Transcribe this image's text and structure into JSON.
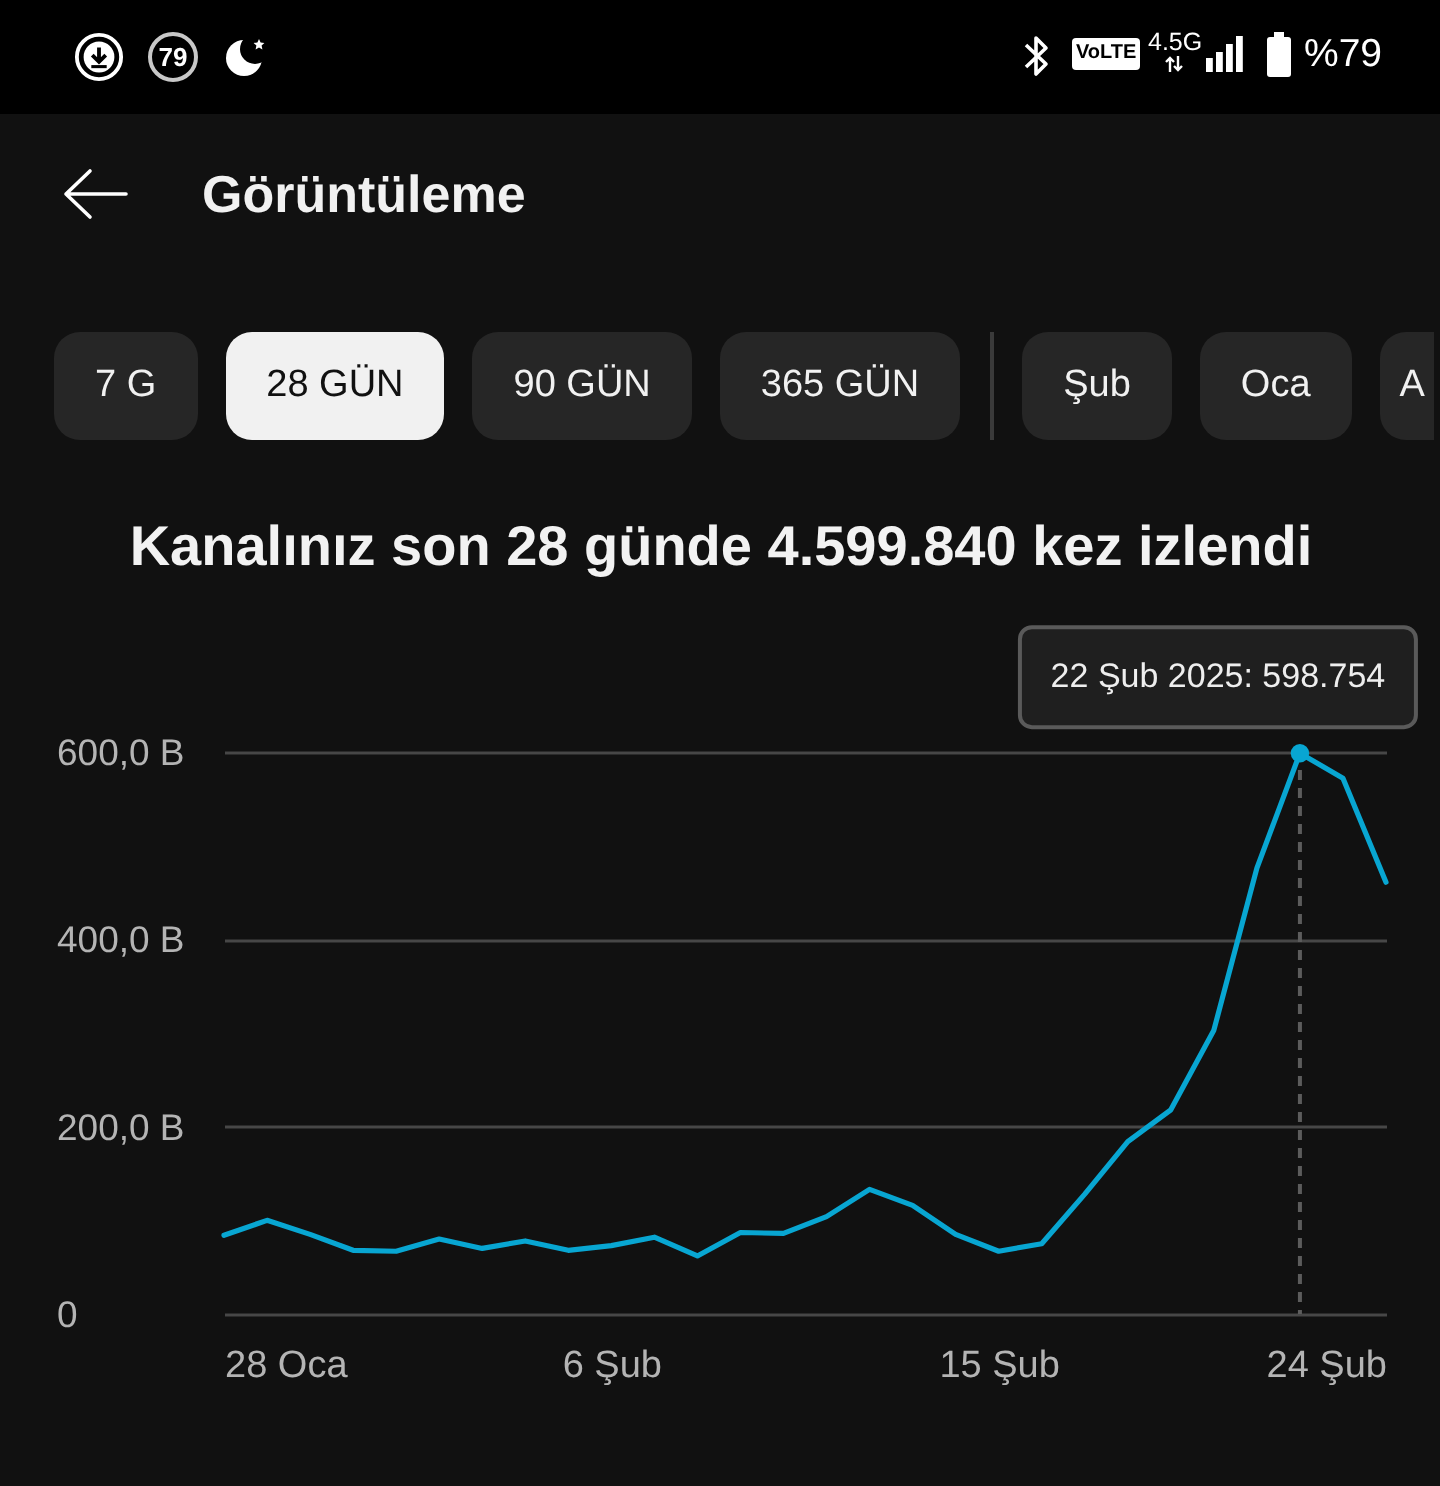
{
  "chart_data": {
    "type": "line",
    "title": "Görüntüleme",
    "subtitle": "Kanalınız son 28 günde 4.599.840 kez izlendi",
    "x": [
      "2025-01-28",
      "2025-01-29",
      "2025-01-30",
      "2025-01-31",
      "2025-02-01",
      "2025-02-02",
      "2025-02-03",
      "2025-02-04",
      "2025-02-05",
      "2025-02-06",
      "2025-02-07",
      "2025-02-08",
      "2025-02-09",
      "2025-02-10",
      "2025-02-11",
      "2025-02-12",
      "2025-02-13",
      "2025-02-14",
      "2025-02-15",
      "2025-02-16",
      "2025-02-17",
      "2025-02-18",
      "2025-02-19",
      "2025-02-20",
      "2025-02-21",
      "2025-02-22",
      "2025-02-23",
      "2025-02-24"
    ],
    "values": [
      84,
      100,
      85,
      68,
      67,
      80,
      70,
      78,
      68,
      73,
      82,
      62,
      87,
      86,
      104,
      133,
      116,
      85,
      67,
      75,
      128,
      184,
      218,
      303,
      476,
      598.754,
      572,
      461
    ],
    "color": "#08a6d2",
    "xlim": [
      "2025-01-28",
      "2025-02-24"
    ],
    "xticks": [
      {
        "value": "2025-01-28",
        "label": "28 Oca"
      },
      {
        "value": "2025-02-06",
        "label": "6 Şub"
      },
      {
        "value": "2025-02-15",
        "label": "15 Şub"
      },
      {
        "value": "2025-02-24",
        "label": "24 Şub"
      }
    ],
    "ylim": [
      0,
      600
    ],
    "yticks": [
      0,
      {
        "value": 200,
        "label": "200,0 B"
      },
      {
        "value": 400,
        "label": "400,0 B"
      },
      {
        "value": 600,
        "label": "600,0 B"
      }
    ],
    "grid": "y",
    "ref_lines": [
      {
        "axis": "x",
        "value": "2025-02-22",
        "color": "#5c5c5c",
        "line_style": "dashed"
      }
    ],
    "annotations": [
      "79",
      "VoLTE",
      "4.5G",
      "%79",
      "7 G",
      "28 GÜN",
      "90 GÜN",
      "365 GÜN",
      "Şub",
      "Oca",
      "A",
      {
        "text": "22 Şub 2025: 598.754",
        "x": "2025-02-22",
        "y": 598.754
      }
    ]
  }
}
